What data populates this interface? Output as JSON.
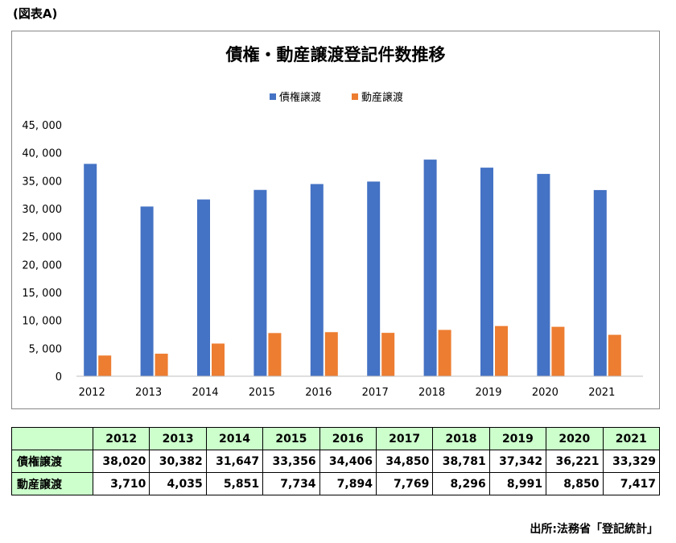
{
  "figure_label": "(図表A)",
  "source": "出所:法務省「登記統計」",
  "colors": {
    "series1": "#4472c4",
    "series2": "#ed7d31",
    "header_bg": "#ccffcc"
  },
  "chart_data": {
    "type": "bar",
    "title": "債権・動産譲渡登記件数推移",
    "legend_position": "top-center",
    "grid": false,
    "categories": [
      "2012",
      "2013",
      "2014",
      "2015",
      "2016",
      "2017",
      "2018",
      "2019",
      "2020",
      "2021"
    ],
    "ylim": [
      0,
      45000
    ],
    "yticks": [
      0,
      5000,
      10000,
      15000,
      20000,
      25000,
      30000,
      35000,
      40000,
      45000
    ],
    "ytick_labels": [
      "0",
      "5, 000",
      "10, 000",
      "15, 000",
      "20, 000",
      "25, 000",
      "30, 000",
      "35, 000",
      "40, 000",
      "45, 000"
    ],
    "series": [
      {
        "name": "債権譲渡",
        "color": "#4472c4",
        "values": [
          38020,
          30382,
          31647,
          33356,
          34406,
          34850,
          38781,
          37342,
          36221,
          33329
        ]
      },
      {
        "name": "動産譲渡",
        "color": "#ed7d31",
        "values": [
          3710,
          4035,
          5851,
          7734,
          7894,
          7769,
          8296,
          8991,
          8850,
          7417
        ]
      }
    ]
  },
  "table": {
    "years": [
      "2012",
      "2013",
      "2014",
      "2015",
      "2016",
      "2017",
      "2018",
      "2019",
      "2020",
      "2021"
    ],
    "rows": [
      {
        "label": "債権譲渡",
        "values": [
          "38,020",
          "30,382",
          "31,647",
          "33,356",
          "34,406",
          "34,850",
          "38,781",
          "37,342",
          "36,221",
          "33,329"
        ]
      },
      {
        "label": "動産譲渡",
        "values": [
          "3,710",
          "4,035",
          "5,851",
          "7,734",
          "7,894",
          "7,769",
          "8,296",
          "8,991",
          "8,850",
          "7,417"
        ]
      }
    ]
  }
}
